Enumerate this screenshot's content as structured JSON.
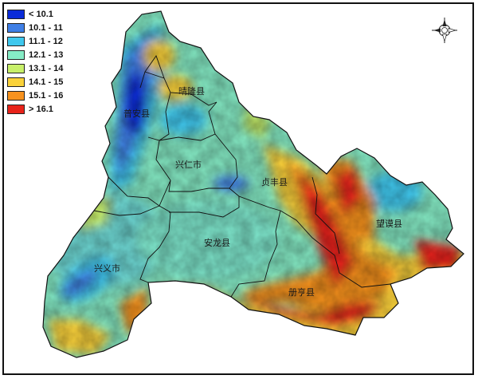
{
  "legend": {
    "items": [
      {
        "label": "< 10.1",
        "color": "#0a2bd8"
      },
      {
        "label": "10.1 - 11",
        "color": "#3f7fe6"
      },
      {
        "label": "11.1 - 12",
        "color": "#3fc8ee"
      },
      {
        "label": "12.1 - 13",
        "color": "#86ecc6"
      },
      {
        "label": "13.1 - 14",
        "color": "#c8f06a"
      },
      {
        "label": "14.1 - 15",
        "color": "#fad23a"
      },
      {
        "label": "15.1 - 16",
        "color": "#f7921e"
      },
      {
        "label": "> 16.1",
        "color": "#e8231a"
      }
    ]
  },
  "compass": {
    "icon": "compass-rose-icon"
  },
  "counties": [
    {
      "id": "qinglong",
      "label": "晴隆县"
    },
    {
      "id": "puan",
      "label": "普安县"
    },
    {
      "id": "xingren",
      "label": "兴仁市"
    },
    {
      "id": "zhenfeng",
      "label": "贞丰县"
    },
    {
      "id": "wangmo",
      "label": "望谟县"
    },
    {
      "id": "anlong",
      "label": "安龙县"
    },
    {
      "id": "xingyi",
      "label": "兴义市"
    },
    {
      "id": "ceheng",
      "label": "册亨县"
    }
  ]
}
